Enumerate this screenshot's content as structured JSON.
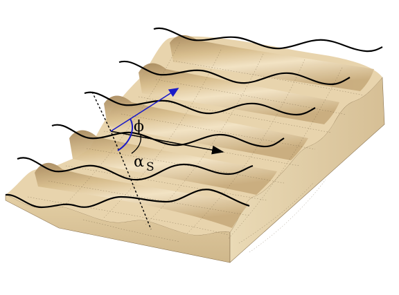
{
  "diagram": {
    "labels": {
      "phi": "ϕ",
      "alpha": "α",
      "alpha_subscript": "S"
    },
    "colors": {
      "surface_light": "#eedcb8",
      "surface_mid": "#d9bf8f",
      "surface_dark": "#a88a5e",
      "side_face": "#e6d3ac",
      "front_face": "#d8c196",
      "crest_line": "#000000",
      "vector_blue": "#1a1ac8",
      "vector_black": "#000000"
    }
  }
}
